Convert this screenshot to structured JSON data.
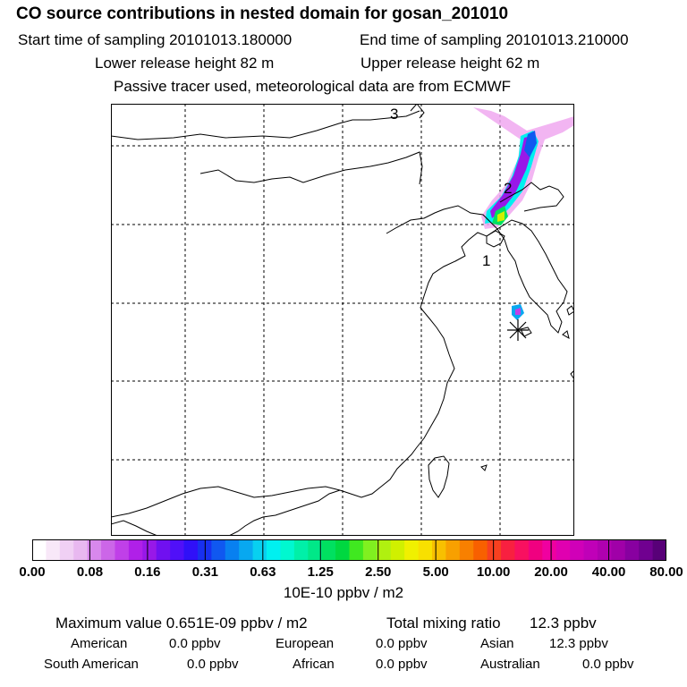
{
  "header": {
    "title": "CO  source contributions in nested domain for gosan_201010",
    "start_label": "Start time of sampling 20101013.180000",
    "end_label": "End time of sampling 20101013.210000",
    "lower_label": "Lower release height   82 m",
    "upper_label": "Upper release height   62 m",
    "tracer_note": "Passive tracer used, meteorological data are from ECMWF"
  },
  "map": {
    "labels": [
      "1",
      "2",
      "3"
    ],
    "receptor_marker": "asterisk-receptor-icon"
  },
  "colorbar": {
    "ticks": [
      "0.00",
      "0.08",
      "0.16",
      "0.31",
      "0.63",
      "1.25",
      "2.50",
      "5.00",
      "10.00",
      "20.00",
      "40.00",
      "80.00"
    ],
    "colors": [
      "#ffffff",
      "#f8e8f8",
      "#f0d0f4",
      "#e8b8f0",
      "#d888ec",
      "#cc66e8",
      "#c040e8",
      "#b020e8",
      "#9818e8",
      "#7010f0",
      "#5010f8",
      "#3010f8",
      "#1830f0",
      "#1058f0",
      "#0880f0",
      "#08a8f0",
      "#08d0f0",
      "#00f0f0",
      "#00f8d0",
      "#00f0a8",
      "#00e888",
      "#00e060",
      "#00d840",
      "#40e820",
      "#80f020",
      "#b0f010",
      "#d0f000",
      "#f0f000",
      "#f8e000",
      "#f8c000",
      "#f8a000",
      "#f88000",
      "#f86000",
      "#f84020",
      "#f82040",
      "#f81060",
      "#f00080",
      "#f000a0",
      "#e000b0",
      "#d000b8",
      "#c000b8",
      "#b000b0",
      "#a000a8",
      "#8800a0",
      "#700090",
      "#580078"
    ],
    "unit_label": "10E-10 ppbv / m2"
  },
  "summary": {
    "max_label": "Maximum value  0.651E-09 ppbv / m2",
    "total_label": "Total mixing ratio",
    "total_value": "12.3 ppbv",
    "regions": [
      {
        "name": "American",
        "value": "0.0 ppbv"
      },
      {
        "name": "European",
        "value": "0.0 ppbv"
      },
      {
        "name": "Asian",
        "value": "12.3 ppbv"
      },
      {
        "name": "South American",
        "value": "0.0 ppbv"
      },
      {
        "name": "African",
        "value": "0.0 ppbv"
      },
      {
        "name": "Australian",
        "value": "0.0 ppbv"
      }
    ]
  }
}
